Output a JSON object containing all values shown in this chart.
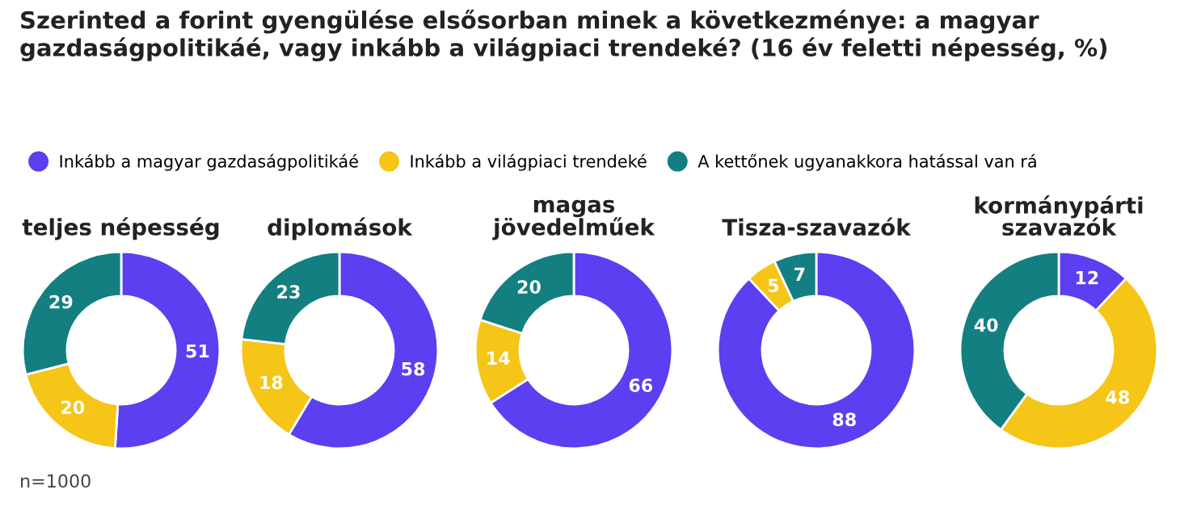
{
  "chart_data": [
    {
      "type": "other",
      "title": "Szerinted a forint gyengülése elsősorban minek a következménye: a magyar gazdaságpolitikáé, vagy inkább a világpiaci trendeké? (16 év feletti népesség, %)",
      "annotations": [
        "n=1000"
      ]
    },
    {
      "type": "donut",
      "title": "teljes népesség",
      "categories": [
        "Inkább a magyar gazdaságpolitikáé",
        "Inkább a világpiaci trendeké",
        "A kettőnek ugyanakkora hatással van rá"
      ],
      "values": [
        51,
        20,
        29
      ],
      "colors": [
        "#5b3ff0",
        "#f5c518",
        "#137f80"
      ],
      "data_labels": true,
      "legend": "top"
    },
    {
      "type": "donut",
      "title": "diplomások",
      "categories": [
        null,
        null,
        null
      ],
      "values": [
        58,
        18,
        23
      ],
      "colors": [
        "#5b3ff0",
        "#f5c518",
        "#137f80"
      ],
      "data_labels": true
    },
    {
      "type": "donut",
      "title": "magas\njövedelműek",
      "categories": [
        null,
        null,
        null
      ],
      "values": [
        66,
        14,
        20
      ],
      "colors": [
        "#5b3ff0",
        "#f5c518",
        "#137f80"
      ],
      "data_labels": true
    },
    {
      "type": "donut",
      "title": "Tisza-szavazók",
      "categories": [
        null,
        null,
        null
      ],
      "values": [
        88,
        5,
        7
      ],
      "colors": [
        "#5b3ff0",
        "#f5c518",
        "#137f80"
      ],
      "data_labels": true
    },
    {
      "type": "donut",
      "title": "kormánypárti\nszavazók",
      "categories": [
        null,
        null,
        null
      ],
      "values": [
        12,
        48,
        40
      ],
      "colors": [
        "#5b3ff0",
        "#f5c518",
        "#137f80"
      ],
      "data_labels": true
    }
  ]
}
